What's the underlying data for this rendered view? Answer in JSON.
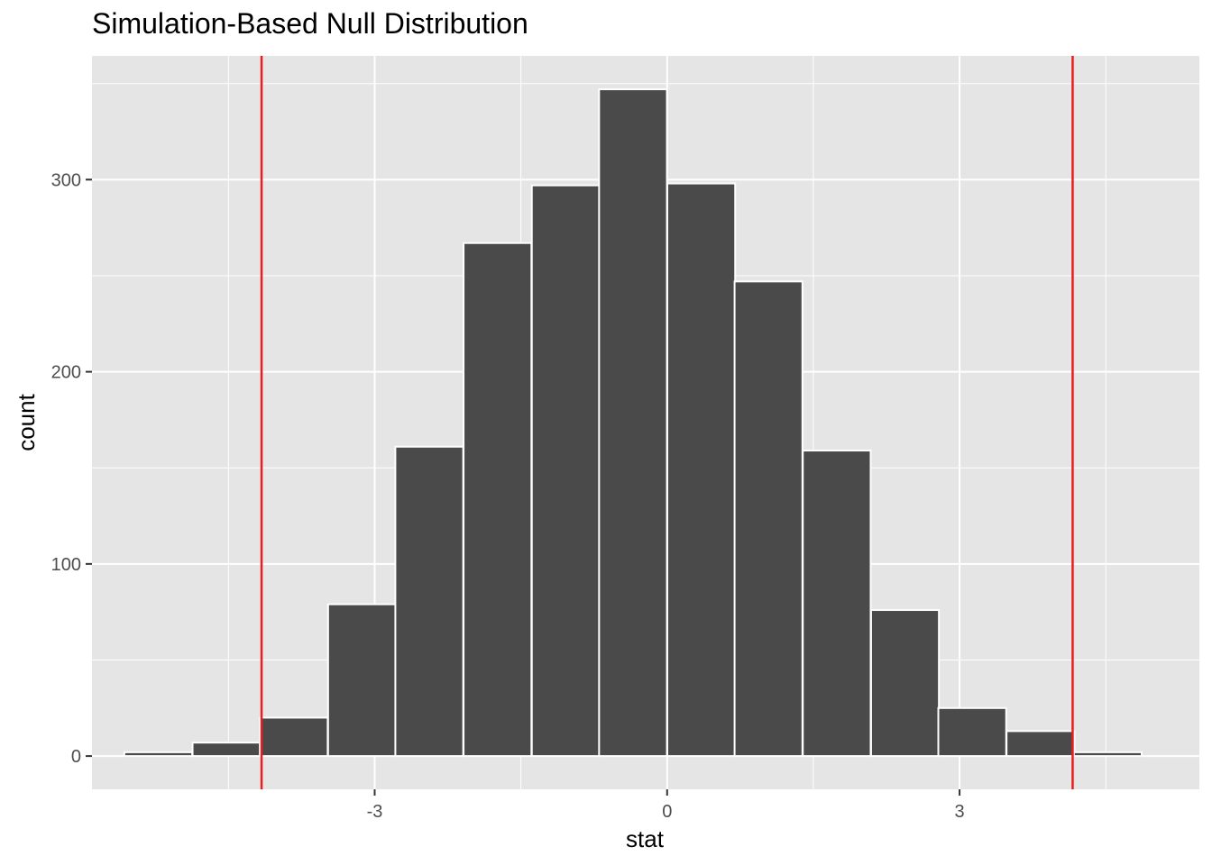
{
  "chart_data": {
    "type": "bar",
    "title": "Simulation-Based Null Distribution",
    "xlabel": "stat",
    "ylabel": "count",
    "bin_width": 0.696,
    "bins": [
      {
        "center": -5.22,
        "count": 2
      },
      {
        "center": -4.52,
        "count": 7
      },
      {
        "center": -3.83,
        "count": 20
      },
      {
        "center": -3.13,
        "count": 79
      },
      {
        "center": -2.44,
        "count": 161
      },
      {
        "center": -1.74,
        "count": 267
      },
      {
        "center": -1.04,
        "count": 297
      },
      {
        "center": -0.35,
        "count": 347
      },
      {
        "center": 0.35,
        "count": 298
      },
      {
        "center": 1.04,
        "count": 247
      },
      {
        "center": 1.74,
        "count": 159
      },
      {
        "center": 2.44,
        "count": 76
      },
      {
        "center": 3.13,
        "count": 25
      },
      {
        "center": 3.83,
        "count": 13
      },
      {
        "center": 4.52,
        "count": 2
      }
    ],
    "xlim": [
      -5.9,
      5.46
    ],
    "ylim": [
      -17.3,
      364.4
    ],
    "x_ticks": [
      -3,
      0,
      3
    ],
    "x_tick_labels": [
      "-3",
      "0",
      "3"
    ],
    "y_ticks": [
      0,
      100,
      200,
      300
    ],
    "y_tick_labels": [
      "0",
      "100",
      "200",
      "300"
    ],
    "vlines": [
      {
        "x": -4.16,
        "color": "#ee1c1c"
      },
      {
        "x": 4.16,
        "color": "#ee1c1c"
      }
    ],
    "grid": true,
    "colors": {
      "panel": "#e5e5e5",
      "grid": "#ffffff",
      "bar_fill": "#4a4a4a",
      "bar_stroke": "#ffffff"
    }
  }
}
